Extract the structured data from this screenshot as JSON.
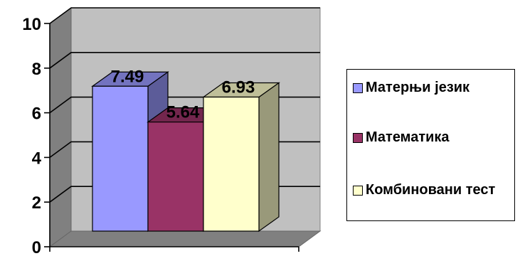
{
  "chart_data": {
    "type": "bar",
    "categories": [
      ""
    ],
    "series": [
      {
        "name": "Матерњи језик",
        "values": [
          7.49
        ],
        "color": "#9999FF"
      },
      {
        "name": "Математика",
        "values": [
          5.64
        ],
        "color": "#993366"
      },
      {
        "name": "Комбиновани тест",
        "values": [
          6.93
        ],
        "color": "#FFFFCC"
      }
    ],
    "ylim": [
      0,
      10
    ],
    "yticks": [
      "0",
      "2",
      "4",
      "6",
      "8",
      "10"
    ],
    "data_labels": [
      "7.49",
      "5.64",
      "6.93"
    ],
    "grid": true,
    "legend_position": "right",
    "style": "3d",
    "wall_color": "#C0C0C0"
  }
}
